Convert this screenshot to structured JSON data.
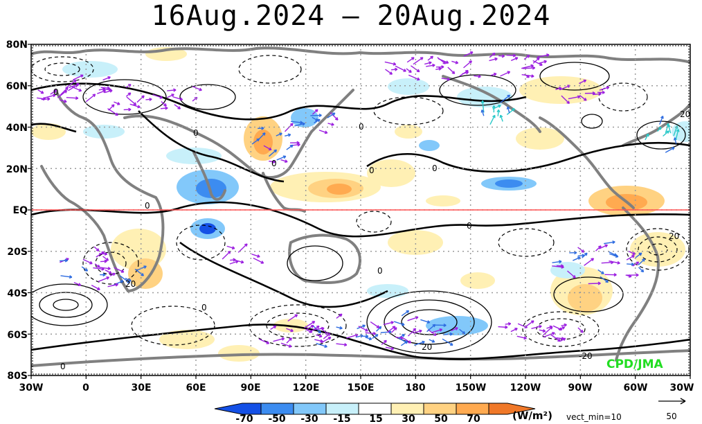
{
  "title": "16Aug.2024 – 20Aug.2024",
  "lat_labels": [
    "80N",
    "60N",
    "40N",
    "20N",
    "EQ",
    "20S",
    "40S",
    "60S",
    "80S"
  ],
  "lon_labels": [
    "30W",
    "0",
    "30E",
    "60E",
    "90E",
    "120E",
    "150E",
    "180",
    "150W",
    "120W",
    "90W",
    "60W",
    "30W"
  ],
  "contour_labels": [
    "0",
    "0",
    "0",
    "0",
    "0",
    "0",
    "0",
    "0",
    "0",
    "0",
    "0",
    "20",
    "20",
    "20",
    "20",
    "-20"
  ],
  "colorbar": {
    "levels": [
      "-70",
      "-50",
      "-30",
      "-15",
      "15",
      "30",
      "50",
      "70"
    ],
    "colors": [
      "#1450e6",
      "#3c8cf0",
      "#82c8fa",
      "#c8f0fa",
      "#ffffff",
      "#fff0b4",
      "#ffd282",
      "#ffaa50",
      "#f07828"
    ],
    "units": "(W/m²)"
  },
  "vector_note": "vect_min=10",
  "reference_vector": "50",
  "credit": "CPD/JMA",
  "colors": {
    "vector_purple": "#9b1ee0",
    "vector_blue": "#2d6be0",
    "vector_cyan": "#28c8c8",
    "coast": "#808080",
    "equator": "#ff5050"
  }
}
